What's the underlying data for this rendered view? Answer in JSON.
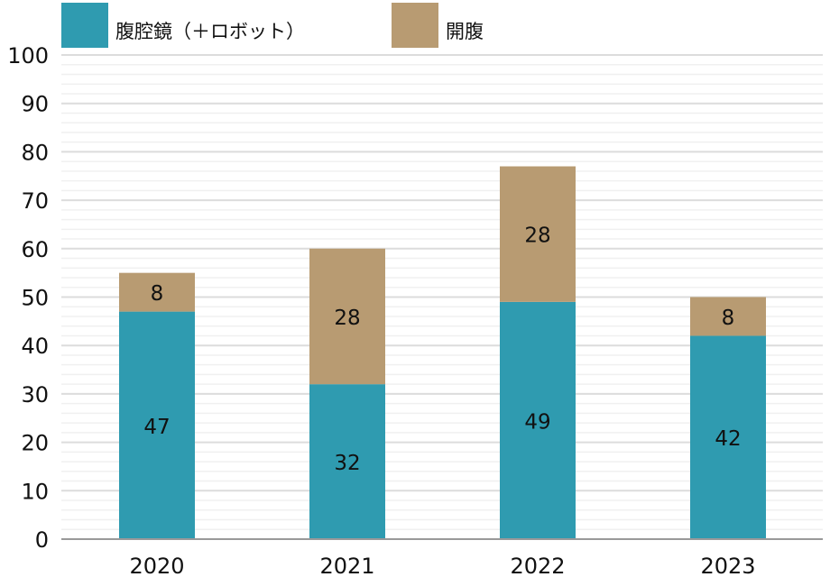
{
  "chart_data": {
    "type": "bar",
    "stacked": true,
    "title": "",
    "xlabel": "",
    "ylabel": "",
    "categories": [
      "2020",
      "2021",
      "2022",
      "2023"
    ],
    "series": [
      {
        "name": "腹腔鏡（＋ロボット）",
        "color": "#2f9bb0",
        "values": [
          47,
          32,
          49,
          42
        ]
      },
      {
        "name": "開腹",
        "color": "#b89b72",
        "values": [
          8,
          28,
          28,
          8
        ]
      }
    ],
    "ylim": [
      0,
      100
    ],
    "yticks": [
      "0",
      "10",
      "20",
      "30",
      "40",
      "50",
      "60",
      "70",
      "80",
      "90",
      "100"
    ],
    "grid": true,
    "legend_position": "top-left"
  }
}
